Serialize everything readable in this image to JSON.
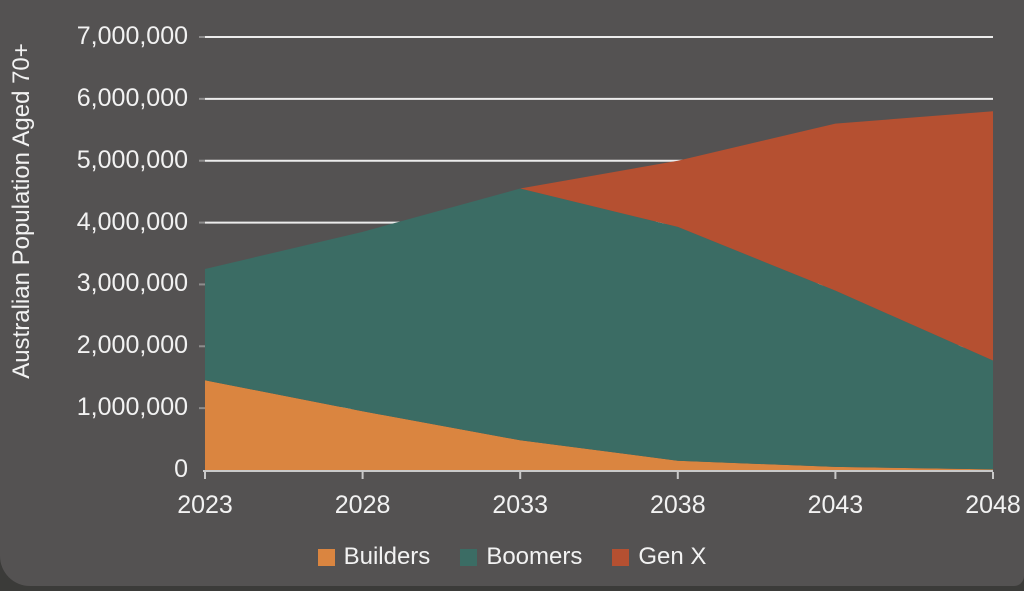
{
  "colors": {
    "background": "#545252",
    "outer_frame": "#3B3B39",
    "gridline": "#ECECEC",
    "axis_line": "#C9C9C9",
    "text": "#F2F2F2"
  },
  "y_axis": {
    "title": "Australian Population Aged 70+",
    "tick_labels": [
      "0",
      "1,000,000",
      "2,000,000",
      "3,000,000",
      "4,000,000",
      "5,000,000",
      "6,000,000",
      "7,000,000"
    ],
    "tick_values": [
      0,
      1000000,
      2000000,
      3000000,
      4000000,
      5000000,
      6000000,
      7000000
    ]
  },
  "x_axis": {
    "tick_labels": [
      "2023",
      "2028",
      "2033",
      "2038",
      "2043",
      "2048"
    ]
  },
  "legend": {
    "items": [
      {
        "label": "Builders",
        "color": "#DA8540"
      },
      {
        "label": "Boomers",
        "color": "#3B6C64"
      },
      {
        "label": "Gen X",
        "color": "#B55031"
      }
    ]
  },
  "chart_data": {
    "type": "area",
    "stacked": true,
    "title": "",
    "xlabel": "",
    "ylabel": "Australian Population Aged 70+",
    "x": [
      2023,
      2028,
      2033,
      2038,
      2043,
      2048
    ],
    "series": [
      {
        "name": "Builders",
        "color": "#DA8540",
        "values": [
          1450000,
          950000,
          480000,
          150000,
          50000,
          10000
        ]
      },
      {
        "name": "Boomers",
        "color": "#3B6C64",
        "values": [
          1800000,
          2900000,
          4070000,
          3780000,
          2850000,
          1760000
        ]
      },
      {
        "name": "Gen X",
        "color": "#B55031",
        "values": [
          0,
          0,
          0,
          1070000,
          2700000,
          4030000
        ]
      }
    ],
    "ylim": [
      0,
      7000000
    ],
    "grid": true,
    "legend_position": "bottom"
  }
}
